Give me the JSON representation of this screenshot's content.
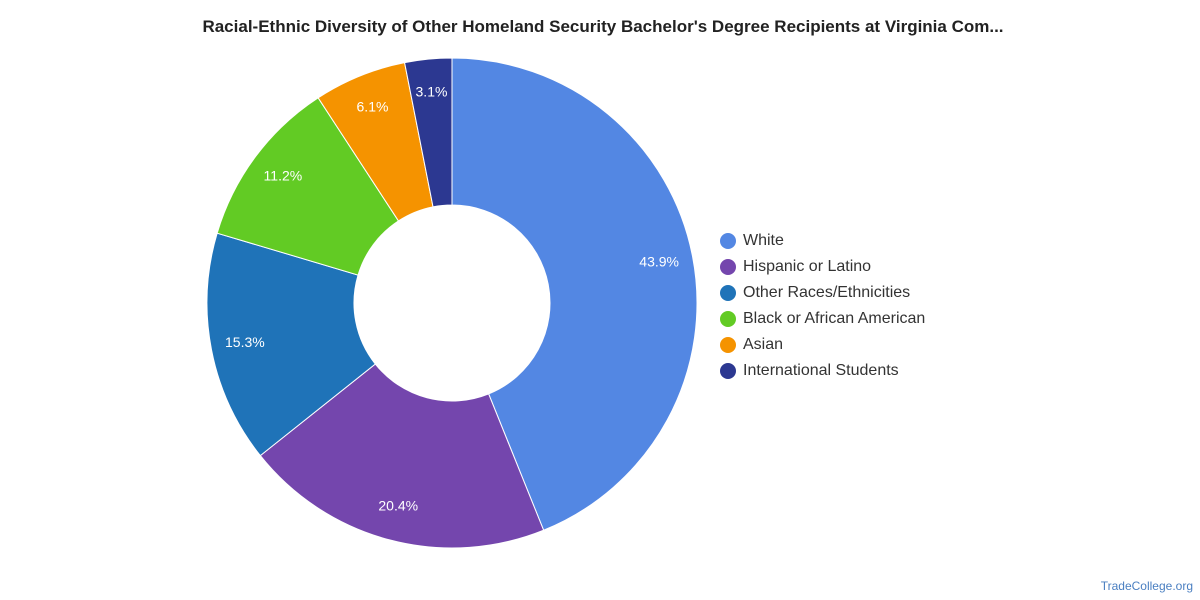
{
  "chart_data": {
    "type": "pie",
    "variant": "donut",
    "title": "Racial-Ethnic Diversity of Other Homeland Security Bachelor's Degree Recipients at Virginia Com...",
    "labels": [
      "White",
      "Hispanic or Latino",
      "Other Races/Ethnicities",
      "Black or African American",
      "Asian",
      "International Students"
    ],
    "values": [
      43.9,
      20.4,
      15.3,
      11.2,
      6.1,
      3.1
    ],
    "value_labels": [
      "43.9%",
      "20.4%",
      "15.3%",
      "11.2%",
      "6.1%",
      "3.1%"
    ],
    "colors": [
      "#5387e3",
      "#7446ad",
      "#1f73b8",
      "#62cb24",
      "#f59300",
      "#2c3891"
    ],
    "legend_position": "right"
  },
  "footer": {
    "source": "TradeCollege.org"
  }
}
